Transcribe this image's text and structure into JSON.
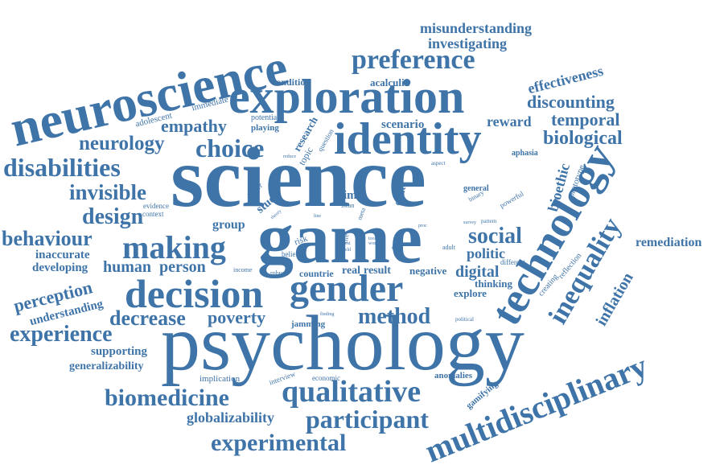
{
  "color": "#3f74a9",
  "words": [
    "science",
    "game",
    "psychology",
    "neuroscience",
    "exploration",
    "identity",
    "decision",
    "gender",
    "technology",
    "multidisciplinary",
    "preference",
    "qualitative",
    "biomedicine",
    "participant",
    "experimental",
    "making",
    "inequality",
    "choice",
    "disabilities",
    "behaviour",
    "design",
    "invisible",
    "empathy",
    "neurology",
    "misunderstanding",
    "investigating",
    "effectiveness",
    "discounting",
    "temporal",
    "reward",
    "biological",
    "social",
    "politic",
    "digital",
    "method",
    "perception",
    "experience",
    "decrease",
    "poverty",
    "understanding",
    "supporting",
    "generalizability",
    "globalizability",
    "remediation",
    "inflation",
    "bioethic",
    "prototype",
    "aphasia",
    "acalculia",
    "condition",
    "scenario",
    "research",
    "topic",
    "question",
    "immediate",
    "adolescent",
    "potential",
    "playing",
    "paper",
    "study",
    "evidence",
    "context",
    "theory",
    "time",
    "swan",
    "group",
    "risk",
    "belief",
    "robust",
    "income",
    "real",
    "result",
    "countrie",
    "negative",
    "thinking",
    "explore",
    "jamming",
    "finding",
    "political",
    "implication",
    "interview",
    "economic",
    "anomalies",
    "gamifying",
    "creating",
    "reflection",
    "different",
    "adult",
    "survey",
    "pattern",
    "powerful",
    "binary",
    "general",
    "global",
    "fault",
    "aspect",
    "reduce",
    "line",
    "meta",
    "life",
    "rule",
    "tool",
    "yield",
    "engage",
    "work",
    "proc",
    "best",
    "inaccurate",
    "developing",
    "human",
    "person"
  ]
}
